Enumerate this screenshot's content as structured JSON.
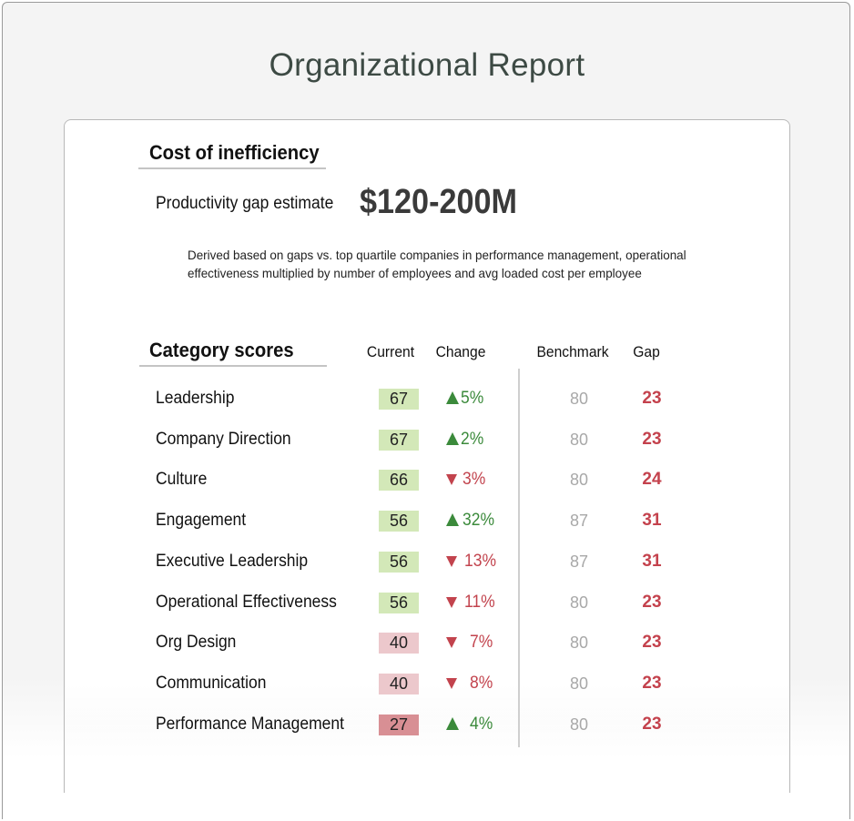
{
  "page": {
    "title": "Organizational Report"
  },
  "cost": {
    "heading": "Cost of inefficiency",
    "gap_label": "Productivity gap estimate",
    "gap_value": "$120-200M",
    "note_line1": "Derived based on gaps vs. top quartile companies in performance management, operational",
    "note_line2": "effectiveness multiplied by number of employees and avg loaded cost per employee"
  },
  "scores": {
    "heading": "Category scores",
    "columns": {
      "current": "Current",
      "change": "Change",
      "benchmark": "Benchmark",
      "gap": "Gap"
    },
    "colors": {
      "up": "#3b8a3b",
      "down": "#c2434d",
      "high": "#d3e8b8",
      "mid": "#ecc8cc",
      "low": "#d88f94"
    },
    "rows": [
      {
        "name": "Leadership",
        "current": "67",
        "change": "5%",
        "direction": "up",
        "benchmark": "80",
        "gap": "23",
        "band": "high"
      },
      {
        "name": "Company Direction",
        "current": "67",
        "change": "2%",
        "direction": "up",
        "benchmark": "80",
        "gap": "23",
        "band": "high"
      },
      {
        "name": "Culture",
        "current": "66",
        "change": "3%",
        "direction": "down",
        "benchmark": "80",
        "gap": "24",
        "band": "high"
      },
      {
        "name": "Engagement",
        "current": "56",
        "change": "32%",
        "direction": "up",
        "benchmark": "87",
        "gap": "31",
        "band": "high"
      },
      {
        "name": "Executive Leadership",
        "current": "56",
        "change": "13%",
        "direction": "down",
        "benchmark": "87",
        "gap": "31",
        "band": "high"
      },
      {
        "name": "Operational Effectiveness",
        "current": "56",
        "change": "11%",
        "direction": "down",
        "benchmark": "80",
        "gap": "23",
        "band": "high"
      },
      {
        "name": "Org Design",
        "current": "40",
        "change": "7%",
        "direction": "down",
        "benchmark": "80",
        "gap": "23",
        "band": "mid"
      },
      {
        "name": "Communication",
        "current": "40",
        "change": "8%",
        "direction": "down",
        "benchmark": "80",
        "gap": "23",
        "band": "mid"
      },
      {
        "name": "Performance Management",
        "current": "27",
        "change": "4%",
        "direction": "up",
        "benchmark": "80",
        "gap": "23",
        "band": "low"
      }
    ]
  }
}
